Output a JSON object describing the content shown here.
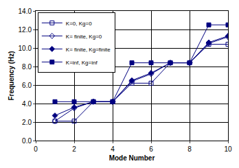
{
  "chart_data": {
    "type": "line",
    "x_label": "Mode Number",
    "y_label": "Frequency (Hz)",
    "x": [
      1,
      2,
      3,
      4,
      5,
      6,
      7,
      8,
      9,
      10
    ],
    "series": [
      {
        "name": "K=0, Kg=0",
        "color": "#000080",
        "marker": "square-open",
        "values": [
          2.1,
          2.1,
          4.2,
          4.2,
          6.2,
          6.2,
          8.4,
          8.4,
          10.4,
          10.4
        ]
      },
      {
        "name": "K= finite, Kg=0",
        "color": "#000080",
        "marker": "diamond-open",
        "values": [
          2.1,
          3.5,
          4.2,
          4.2,
          6.4,
          7.2,
          8.4,
          8.4,
          10.5,
          11.2
        ]
      },
      {
        "name": "K= finite, Kg=finite",
        "color": "#000080",
        "marker": "diamond",
        "values": [
          2.7,
          3.6,
          4.2,
          4.2,
          6.5,
          7.3,
          8.4,
          8.4,
          10.6,
          11.3
        ]
      },
      {
        "name": "K=inf, Kg=inf",
        "color": "#000080",
        "marker": "square",
        "values": [
          4.2,
          4.2,
          4.2,
          4.2,
          8.4,
          8.4,
          8.4,
          8.4,
          12.5,
          12.5
        ]
      }
    ],
    "xlim": [
      0,
      10
    ],
    "xticks": [
      0,
      2,
      4,
      6,
      8,
      10
    ],
    "ylim": [
      0,
      14
    ],
    "yticks": [
      {
        "value": 0,
        "label": "0.0"
      },
      {
        "value": 2,
        "label": "2.0"
      },
      {
        "value": 4,
        "label": "4.0"
      },
      {
        "value": 6,
        "label": "6.0"
      },
      {
        "value": 8,
        "label": "8.0"
      },
      {
        "value": 10,
        "label": "10.0"
      },
      {
        "value": 12,
        "label": "12.0"
      },
      {
        "value": 14,
        "label": "14.0"
      }
    ],
    "grid": true,
    "legend": "top-left"
  }
}
